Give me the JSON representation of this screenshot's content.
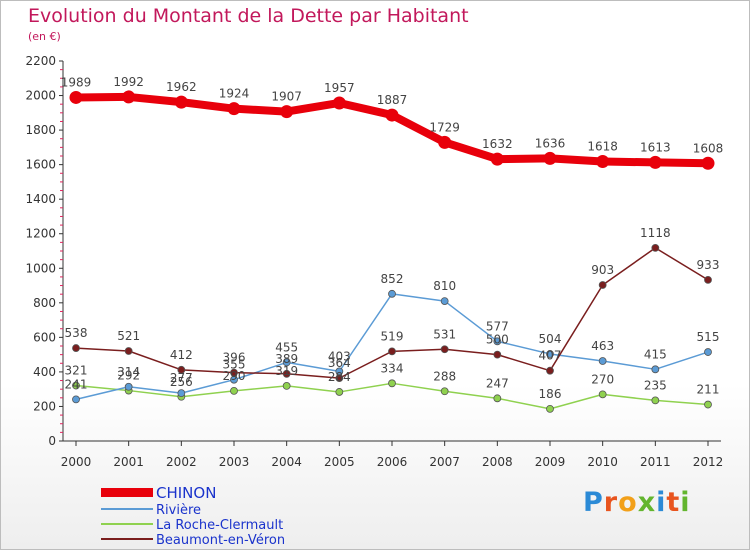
{
  "header": {
    "title": "Evolution du Montant de la Dette par Habitant",
    "subtitle": "(en €)"
  },
  "logo": {
    "text": "Proxiti",
    "colors": [
      "#2b8ad6",
      "#e8541e",
      "#f2a01a",
      "#63b52e",
      "#2b8ad6",
      "#e8541e",
      "#63b52e"
    ]
  },
  "colors": {
    "title": "#c2185b",
    "legend_text": "#1a33cc"
  },
  "chart_data": {
    "type": "line",
    "title": "Evolution du Montant de la Dette par Habitant",
    "subtitle": "(en €)",
    "x": [
      "2000",
      "2001",
      "2002",
      "2003",
      "2004",
      "2005",
      "2006",
      "2007",
      "2008",
      "2009",
      "2010",
      "2011",
      "2012"
    ],
    "yticks": [
      "0",
      "200",
      "400",
      "600",
      "800",
      "1000",
      "1200",
      "1400",
      "1600",
      "1800",
      "2000",
      "2200"
    ],
    "ylim": [
      0,
      2200
    ],
    "grid": false,
    "legend_position": "bottom-left",
    "series": [
      {
        "name": "CHINON",
        "color": "#e8000b",
        "values": [
          1989,
          1992,
          1962,
          1924,
          1907,
          1957,
          1887,
          1729,
          1632,
          1636,
          1618,
          1613,
          1608
        ],
        "labels": [
          "1989",
          "1992",
          "1962",
          "1924",
          "1907",
          "1957",
          "1887",
          "1729",
          "1632",
          "1636",
          "1618",
          "1613",
          "1608"
        ]
      },
      {
        "name": "Rivière",
        "color": "#5b9bd5",
        "values": [
          241,
          314,
          277,
          355,
          455,
          403,
          852,
          810,
          577,
          504,
          463,
          415,
          515
        ],
        "labels": [
          "241",
          "314",
          "277",
          "355",
          "455",
          "403",
          "852",
          "810",
          "577",
          "504",
          "463",
          "415",
          "515"
        ]
      },
      {
        "name": "La Roche-Clermault",
        "color": "#8fd14f",
        "values": [
          321,
          292,
          256,
          290,
          319,
          284,
          334,
          288,
          247,
          186,
          270,
          235,
          211
        ],
        "labels": [
          "321",
          "292",
          "256",
          "290",
          "319",
          "284",
          "334",
          "288",
          "247",
          "186",
          "270",
          "235",
          "211"
        ]
      },
      {
        "name": "Beaumont-en-Véron",
        "color": "#7a1e1e",
        "values": [
          538,
          521,
          412,
          396,
          389,
          364,
          519,
          531,
          500,
          407,
          903,
          1118,
          933
        ],
        "labels": [
          "538",
          "521",
          "412",
          "396",
          "389",
          "364",
          "519",
          "531",
          "500",
          "407",
          "903",
          "1118",
          "933"
        ]
      }
    ]
  }
}
